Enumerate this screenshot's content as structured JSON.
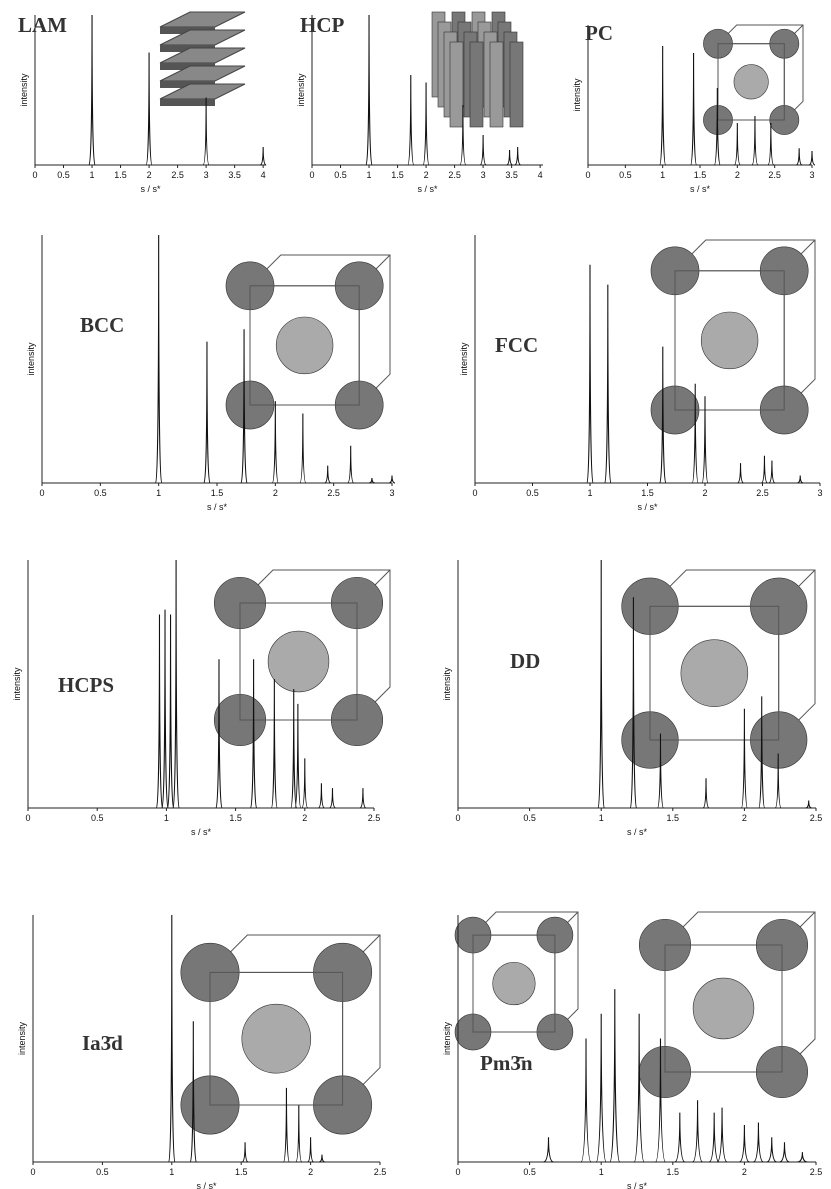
{
  "chart_data": [
    {
      "type": "spectrum",
      "title": "LAM",
      "xlabel": "s / s*",
      "ylabel": "intensity",
      "xlim": [
        0,
        4.05
      ],
      "ylim": [
        0,
        100
      ],
      "xticks": [
        0,
        0.5,
        1,
        1.5,
        2,
        2.5,
        3,
        3.5,
        4
      ],
      "x": [
        1,
        2,
        3,
        4
      ],
      "values": [
        100,
        75,
        45,
        12
      ]
    },
    {
      "type": "spectrum",
      "title": "HCP",
      "xlabel": "s / s*",
      "ylabel": "intensity",
      "xlim": [
        0,
        4.05
      ],
      "ylim": [
        0,
        100
      ],
      "xticks": [
        0,
        0.5,
        1,
        1.5,
        2,
        2.5,
        3,
        3.5,
        4
      ],
      "x": [
        1,
        1.732,
        2,
        2.646,
        3,
        3.464,
        3.606
      ],
      "values": [
        100,
        60,
        55,
        40,
        20,
        10,
        12
      ]
    },
    {
      "type": "spectrum",
      "title": "PC",
      "xlabel": "s / s*",
      "ylabel": "intensity",
      "xlim": [
        0,
        3
      ],
      "ylim": [
        0,
        100
      ],
      "xticks": [
        0,
        0.5,
        1,
        1.5,
        2,
        2.5,
        3
      ],
      "x": [
        1,
        1.414,
        1.732,
        2,
        2.236,
        2.449,
        2.828,
        3
      ],
      "values": [
        85,
        80,
        55,
        30,
        35,
        30,
        12,
        10
      ]
    },
    {
      "type": "spectrum",
      "title": "BCC",
      "xlabel": "s / s*",
      "ylabel": "intensity",
      "xlim": [
        0,
        3
      ],
      "ylim": [
        0,
        100
      ],
      "xticks": [
        0,
        0.5,
        1,
        1.5,
        2,
        2.5,
        3
      ],
      "x": [
        1,
        1.414,
        1.732,
        2,
        2.236,
        2.449,
        2.646,
        2.828,
        3
      ],
      "values": [
        100,
        57,
        62,
        33,
        28,
        7,
        15,
        2,
        3
      ]
    },
    {
      "type": "spectrum",
      "title": "FCC",
      "xlabel": "s / s*",
      "ylabel": "intensity",
      "xlim": [
        0,
        3
      ],
      "ylim": [
        0,
        100
      ],
      "xticks": [
        0,
        0.5,
        1,
        1.5,
        2,
        2.5,
        3
      ],
      "x": [
        1,
        1.155,
        1.633,
        1.915,
        2,
        2.309,
        2.517,
        2.582,
        2.828
      ],
      "values": [
        88,
        80,
        55,
        40,
        35,
        8,
        11,
        9,
        3
      ]
    },
    {
      "type": "spectrum",
      "title": "HCPS",
      "xlabel": "s / s*",
      "ylabel": "intensity",
      "xlim": [
        0,
        2.5
      ],
      "ylim": [
        0,
        100
      ],
      "xticks": [
        0,
        0.5,
        1,
        1.5,
        2,
        2.5
      ],
      "x": [
        0.95,
        0.99,
        1.03,
        1.07,
        1.38,
        1.63,
        1.78,
        1.92,
        1.95,
        2.0,
        2.12,
        2.2,
        2.42
      ],
      "values": [
        78,
        80,
        78,
        100,
        60,
        60,
        52,
        48,
        42,
        20,
        10,
        8,
        8
      ]
    },
    {
      "type": "spectrum",
      "title": "DD",
      "xlabel": "s / s*",
      "ylabel": "intensity",
      "xlim": [
        0,
        2.5
      ],
      "ylim": [
        0,
        100
      ],
      "xticks": [
        0,
        0.5,
        1,
        1.5,
        2,
        2.5
      ],
      "x": [
        1,
        1.225,
        1.414,
        1.732,
        2,
        2.121,
        2.236,
        2.449
      ],
      "values": [
        100,
        85,
        30,
        12,
        40,
        45,
        22,
        3
      ]
    },
    {
      "type": "spectrum",
      "title": "Ia3̄d",
      "xlabel": "s / s*",
      "ylabel": "intensity",
      "xlim": [
        0,
        2.5
      ],
      "ylim": [
        0,
        100
      ],
      "xticks": [
        0,
        0.5,
        1,
        1.5,
        2,
        2.5
      ],
      "x": [
        1,
        1.155,
        1.528,
        1.826,
        1.915,
        2,
        2.082
      ],
      "values": [
        100,
        57,
        8,
        30,
        23,
        10,
        3
      ]
    },
    {
      "type": "spectrum",
      "title": "Pm3̄n",
      "xlabel": "s / s*",
      "ylabel": "intensity",
      "xlim": [
        0,
        2.5
      ],
      "ylim": [
        0,
        100
      ],
      "xticks": [
        0,
        0.5,
        1,
        1.5,
        2,
        2.5
      ],
      "x": [
        0.632,
        0.894,
        1,
        1.095,
        1.265,
        1.414,
        1.549,
        1.673,
        1.789,
        1.844,
        2,
        2.098,
        2.191,
        2.28,
        2.405
      ],
      "values": [
        10,
        50,
        60,
        70,
        60,
        50,
        20,
        25,
        20,
        22,
        15,
        16,
        10,
        8,
        4
      ]
    }
  ]
}
